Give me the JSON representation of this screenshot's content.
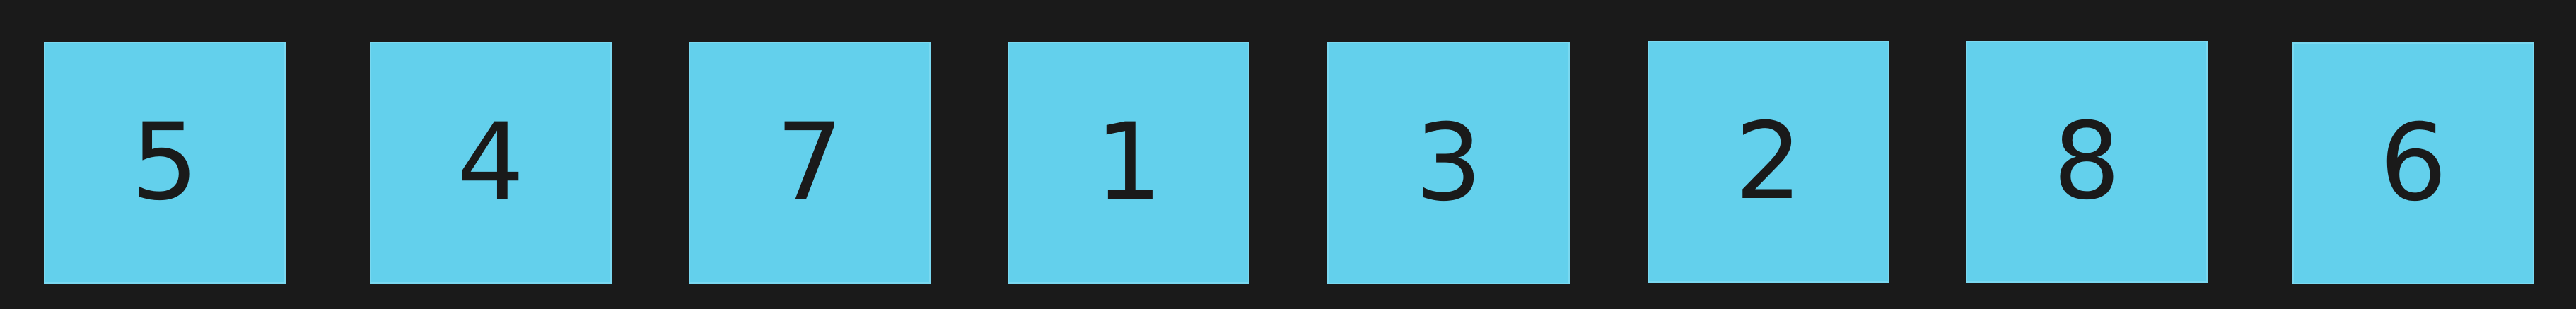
{
  "tiles": [
    {
      "value": "5"
    },
    {
      "value": "4"
    },
    {
      "value": "7"
    },
    {
      "value": "1"
    },
    {
      "value": "3"
    },
    {
      "value": "2"
    },
    {
      "value": "8"
    },
    {
      "value": "6"
    }
  ],
  "colors": {
    "background": "#1a1a1a",
    "tile_fill": "#63d0ec",
    "tile_text": "#1a1a1a"
  }
}
